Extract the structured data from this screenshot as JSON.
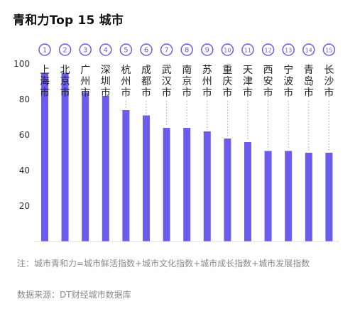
{
  "chart_data": {
    "type": "bar",
    "title": "青和力Top 15 城市",
    "categories": [
      "上海市",
      "北京市",
      "广州市",
      "深圳市",
      "杭州市",
      "成都市",
      "武汉市",
      "南京市",
      "苏州市",
      "重庆市",
      "天津市",
      "西安市",
      "宁波市",
      "青岛市",
      "长沙市"
    ],
    "ranks": [
      "1",
      "2",
      "3",
      "4",
      "5",
      "6",
      "7",
      "8",
      "9",
      "10",
      "11",
      "12",
      "13",
      "14",
      "15"
    ],
    "values": [
      95,
      95,
      84,
      82,
      74,
      71,
      64,
      64,
      62,
      58,
      56,
      51,
      51,
      50,
      50
    ],
    "y_ticks": [
      "20",
      "40",
      "60",
      "80",
      "100"
    ],
    "ylim": [
      0,
      110
    ],
    "bar_color": "#6b5cec",
    "rank_color": "#6b5cec",
    "grid": false
  },
  "note": "注：城市青和力=城市鲜活指数+城市文化指数+城市成长指数+城市发展指数",
  "source": "数据来源：DT财经城市数据库"
}
